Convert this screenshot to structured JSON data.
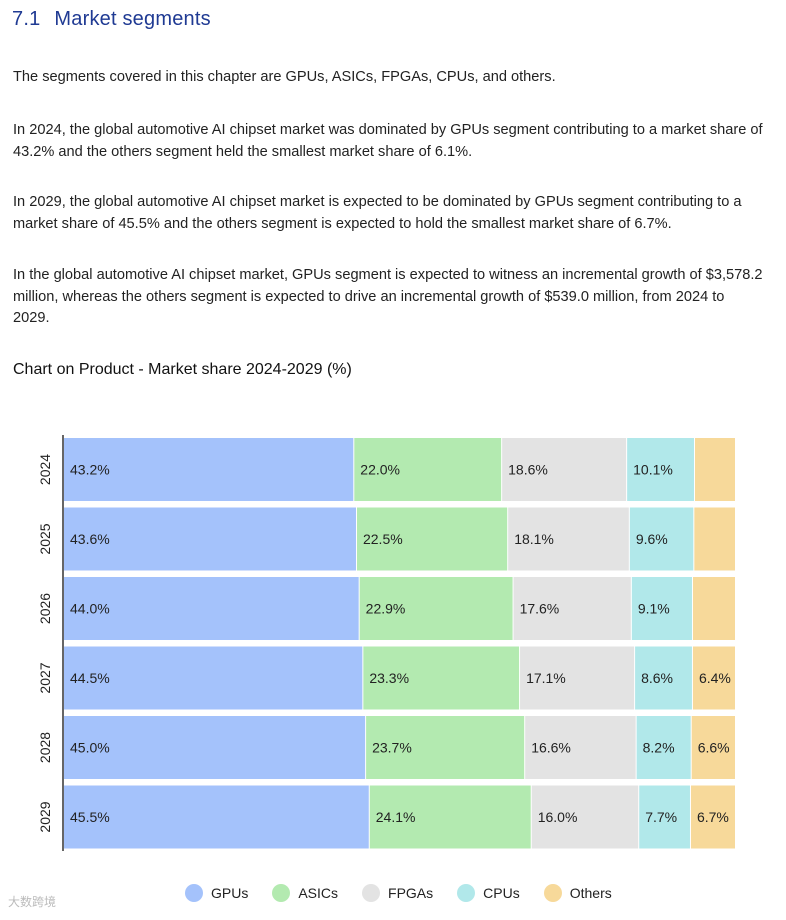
{
  "section": {
    "number": "7.1",
    "title": "Market segments"
  },
  "paragraphs": [
    "The segments covered in this chapter are GPUs, ASICs, FPGAs, CPUs, and others.",
    "In 2024, the global automotive AI chipset market was dominated by GPUs segment contributing to a market share of 43.2% and the others segment held the smallest market share of 6.1%.",
    "In 2029, the global automotive AI chipset market is expected to be dominated by GPUs segment contributing to a market share of 45.5% and the others segment is expected to hold the smallest market share of 6.7%.",
    "In the global automotive AI chipset market, GPUs segment is expected to witness an incremental growth of $3,578.2 million, whereas the others segment is expected to drive an incremental growth of $539.0 million, from 2024 to 2029."
  ],
  "chart_title": "Chart on Product - Market share 2024-2029 (%)",
  "watermark": "大数跨境",
  "chart_data": {
    "type": "bar",
    "orientation": "horizontal",
    "stacked": true,
    "normalized_percent": true,
    "categories": [
      "2024",
      "2025",
      "2026",
      "2027",
      "2028",
      "2029"
    ],
    "series": [
      {
        "name": "GPUs",
        "color": "#a4c2fb",
        "values": [
          43.2,
          43.6,
          44.0,
          44.5,
          45.0,
          45.5
        ]
      },
      {
        "name": "ASICs",
        "color": "#b3eab0",
        "values": [
          22.0,
          22.5,
          22.9,
          23.3,
          23.7,
          24.1
        ]
      },
      {
        "name": "FPGAs",
        "color": "#e3e3e3",
        "values": [
          18.6,
          18.1,
          17.6,
          17.1,
          16.6,
          16.0
        ]
      },
      {
        "name": "CPUs",
        "color": "#b1e8ea",
        "values": [
          10.1,
          9.6,
          9.1,
          8.6,
          8.2,
          7.7
        ]
      },
      {
        "name": "Others",
        "color": "#f7d99a",
        "values": [
          6.1,
          6.2,
          6.4,
          6.4,
          6.6,
          6.7
        ]
      }
    ],
    "data_labels_shown": [
      [
        "43.2%",
        "22.0%",
        "18.6%",
        "10.1%",
        ""
      ],
      [
        "43.6%",
        "22.5%",
        "18.1%",
        "9.6%",
        ""
      ],
      [
        "44.0%",
        "22.9%",
        "17.6%",
        "9.1%",
        ""
      ],
      [
        "44.5%",
        "23.3%",
        "17.1%",
        "8.6%",
        "6.4%"
      ],
      [
        "45.0%",
        "23.7%",
        "16.6%",
        "8.2%",
        "6.6%"
      ],
      [
        "45.5%",
        "24.1%",
        "16.0%",
        "7.7%",
        "6.7%"
      ]
    ],
    "xlim": [
      0,
      100
    ],
    "legend_position": "bottom",
    "grid": false
  }
}
